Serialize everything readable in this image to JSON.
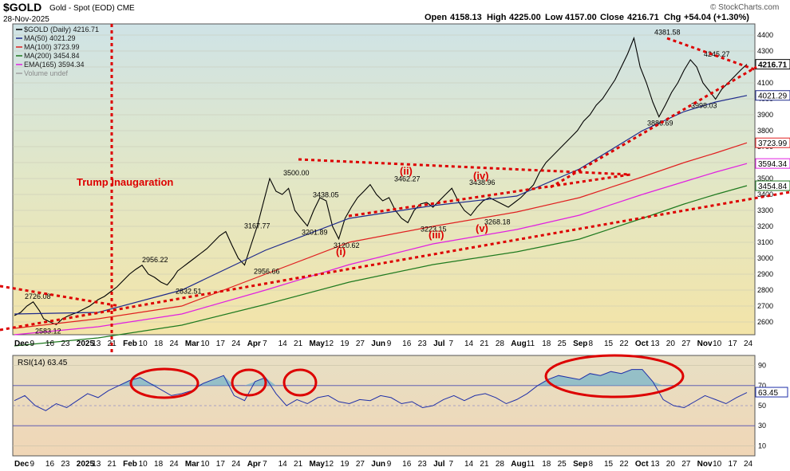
{
  "header": {
    "ticker": "$GOLD",
    "subtitle": "Gold - Spot (EOD)  CME",
    "date": "28-Nov-2025",
    "open_label": "Open",
    "open": "4158.13",
    "high_label": "High",
    "high": "4225.00",
    "low_label": "Low",
    "low": "4157.00",
    "close_label": "Close",
    "close": "4216.71",
    "chg_label": "Chg",
    "chg": "+54.04 (+1.30%)",
    "brand": "© StockCharts.com"
  },
  "legend": [
    {
      "label": "$GOLD (Daily) 4216.71",
      "color": "#000000"
    },
    {
      "label": "MA(50) 4021.29",
      "color": "#1e2a8c"
    },
    {
      "label": "MA(100) 3723.99",
      "color": "#e02020"
    },
    {
      "label": "MA(200) 3454.84",
      "color": "#1f7a1f"
    },
    {
      "label": "EMA(165) 3594.34",
      "color": "#e020e0"
    },
    {
      "label": "Volume undef",
      "color": "#a0a0a0"
    }
  ],
  "colors": {
    "price_up": "#000000",
    "price_down": "#c00000",
    "annotation": "#dd0000",
    "rsi_line": "#1f2fa8",
    "rsi_fill": "#7fb8c8"
  },
  "x_axis_labels": [
    "Dec",
    "9",
    "16",
    "23",
    "2025",
    "13",
    "21",
    "Feb",
    "10",
    "18",
    "24",
    "Mar",
    "10",
    "17",
    "24",
    "Apr",
    "7",
    "14",
    "21",
    "May",
    "12",
    "19",
    "27",
    "Jun",
    "9",
    "16",
    "23",
    "Jul",
    "7",
    "14",
    "21",
    "28",
    "Aug",
    "11",
    "18",
    "25",
    "Sep",
    "8",
    "15",
    "22",
    "Oct",
    "13",
    "20",
    "27",
    "Nov",
    "10",
    "17",
    "24"
  ],
  "chart_data": [
    {
      "type": "line",
      "title": "$GOLD (Daily) 4216.71",
      "y_ticks": [
        "2600",
        "2700",
        "2800",
        "2900",
        "3000",
        "3100",
        "3200",
        "3300",
        "3400",
        "3500",
        "3600",
        "3700",
        "3800",
        "3900",
        "4000",
        "4100",
        "4200",
        "4300",
        "4400"
      ],
      "ylim": [
        2520,
        4470
      ],
      "price_labels": [
        {
          "text": "2726.08",
          "value": 2726.08
        },
        {
          "text": "2583.12",
          "value": 2583.12
        },
        {
          "text": "2956.22",
          "value": 2956.22
        },
        {
          "text": "2832.51",
          "value": 2832.51
        },
        {
          "text": "3167.77",
          "value": 3167.77
        },
        {
          "text": "2956.66",
          "value": 2956.66
        },
        {
          "text": "3500.00",
          "value": 3500.0
        },
        {
          "text": "3438.05",
          "value": 3438.05
        },
        {
          "text": "3201.89",
          "value": 3201.89
        },
        {
          "text": "3120.62",
          "value": 3120.62
        },
        {
          "text": "3462.27",
          "value": 3462.27
        },
        {
          "text": "3223.15",
          "value": 3223.15
        },
        {
          "text": "3438.96",
          "value": 3438.96
        },
        {
          "text": "3268.18",
          "value": 3268.18
        },
        {
          "text": "4381.58",
          "value": 4381.58
        },
        {
          "text": "3886.69",
          "value": 3886.69
        },
        {
          "text": "4245.27",
          "value": 4245.27
        },
        {
          "text": "3998.03",
          "value": 3998.03
        }
      ],
      "right_tags": [
        {
          "text": "4216.71",
          "value": 4216.71,
          "color": "#000000"
        },
        {
          "text": "4021.29",
          "value": 4021.29,
          "color": "#1e2a8c"
        },
        {
          "text": "3723.99",
          "value": 3723.99,
          "color": "#e02020"
        },
        {
          "text": "3594.34",
          "value": 3594.34,
          "color": "#e020e0"
        },
        {
          "text": "3454.84",
          "value": 3454.84,
          "color": "#1f7a1f"
        }
      ],
      "wave_labels": [
        {
          "text": "(i)",
          "value": 3020
        },
        {
          "text": "(ii)",
          "value": 3525
        },
        {
          "text": "(iii)",
          "value": 3125
        },
        {
          "text": "(iv)",
          "value": 3495
        },
        {
          "text": "(v)",
          "value": 3165
        }
      ],
      "annotation": "Trump Inaugaration",
      "series": [
        {
          "name": "$GOLD (Daily) 4216.71",
          "color": "#000000",
          "x": [
            0,
            3,
            6,
            9,
            12,
            14,
            17,
            20,
            23,
            26,
            30,
            33,
            36,
            38,
            40,
            43,
            46,
            49,
            52,
            55,
            58,
            61,
            64,
            67,
            70,
            73,
            76,
            78,
            80,
            83,
            86,
            89,
            92,
            95,
            98,
            101,
            104,
            107,
            110,
            113,
            116,
            119,
            122,
            125,
            128,
            131,
            134,
            137,
            140,
            143,
            146,
            149,
            152,
            155,
            158,
            161,
            164,
            167,
            170,
            173,
            176,
            179,
            182,
            185,
            188,
            191,
            194,
            197,
            200,
            203,
            206,
            209,
            212,
            215,
            218,
            221,
            224,
            227,
            230,
            233,
            236,
            239,
            242,
            245,
            248,
            251,
            254,
            257,
            260,
            263,
            266,
            269,
            272,
            275,
            278,
            281,
            284,
            287,
            290,
            293,
            296,
            299,
            302,
            305,
            308,
            311,
            314,
            317,
            320,
            323,
            326,
            329,
            332,
            335,
            338,
            341,
            344,
            347,
            350
          ],
          "values": [
            2640,
            2660,
            2700,
            2726,
            2670,
            2620,
            2600,
            2583,
            2620,
            2640,
            2660,
            2680,
            2700,
            2720,
            2740,
            2760,
            2790,
            2820,
            2860,
            2900,
            2930,
            2956,
            2900,
            2880,
            2850,
            2832,
            2880,
            2920,
            2940,
            2970,
            3000,
            3030,
            3060,
            3100,
            3140,
            3167,
            3080,
            3000,
            2957,
            3080,
            3200,
            3350,
            3500,
            3420,
            3400,
            3438,
            3300,
            3250,
            3202,
            3300,
            3380,
            3360,
            3200,
            3121,
            3250,
            3320,
            3380,
            3420,
            3462,
            3400,
            3360,
            3380,
            3300,
            3250,
            3223,
            3300,
            3340,
            3350,
            3320,
            3360,
            3400,
            3439,
            3360,
            3300,
            3268,
            3320,
            3360,
            3380,
            3360,
            3340,
            3320,
            3350,
            3380,
            3420,
            3460,
            3540,
            3600,
            3640,
            3680,
            3720,
            3760,
            3800,
            3860,
            3900,
            3960,
            4000,
            4060,
            4120,
            4200,
            4282,
            4381,
            4200,
            4100,
            3980,
            3887,
            3960,
            4040,
            4100,
            4180,
            4245,
            4200,
            4100,
            4050,
            3998,
            4060,
            4100,
            4140,
            4180,
            4217
          ]
        },
        {
          "name": "MA(50) 4021.29",
          "color": "#1e2a8c",
          "x": [
            0,
            40,
            80,
            120,
            160,
            200,
            240,
            270,
            300,
            320,
            335,
            350
          ],
          "values": [
            2650,
            2660,
            2800,
            3050,
            3250,
            3330,
            3390,
            3560,
            3800,
            3920,
            3980,
            4021
          ]
        },
        {
          "name": "MA(100) 3723.99",
          "color": "#e02020",
          "x": [
            0,
            40,
            80,
            120,
            160,
            200,
            240,
            270,
            300,
            320,
            335,
            350
          ],
          "values": [
            2560,
            2620,
            2700,
            2900,
            3100,
            3200,
            3290,
            3380,
            3510,
            3600,
            3660,
            3724
          ]
        },
        {
          "name": "EMA(165) 3594.34",
          "color": "#e020e0",
          "x": [
            0,
            40,
            80,
            120,
            160,
            200,
            240,
            270,
            300,
            320,
            335,
            350
          ],
          "values": [
            2520,
            2570,
            2650,
            2800,
            2960,
            3090,
            3180,
            3270,
            3400,
            3480,
            3540,
            3594
          ]
        },
        {
          "name": "MA(200) 3454.84",
          "color": "#1f7a1f",
          "x": [
            0,
            40,
            80,
            120,
            160,
            200,
            240,
            270,
            300,
            320,
            335,
            350
          ],
          "values": [
            2450,
            2500,
            2580,
            2710,
            2850,
            2960,
            3040,
            3120,
            3250,
            3340,
            3400,
            3455
          ]
        }
      ]
    },
    {
      "type": "line",
      "title": "RSI(14) 63.45",
      "y_ticks": [
        "10",
        "30",
        "50",
        "70",
        "90"
      ],
      "ylim": [
        0,
        100
      ],
      "right_tags": [
        {
          "text": "63.45",
          "value": 63.45,
          "color": "#1f2fa8"
        }
      ],
      "series": [
        {
          "name": "RSI(14) 63.45",
          "color": "#1f2fa8",
          "x": [
            0,
            5,
            10,
            15,
            20,
            25,
            30,
            35,
            40,
            45,
            50,
            55,
            60,
            65,
            70,
            75,
            80,
            85,
            90,
            95,
            100,
            105,
            110,
            115,
            120,
            125,
            130,
            135,
            140,
            145,
            150,
            155,
            160,
            165,
            170,
            175,
            180,
            185,
            190,
            195,
            200,
            205,
            210,
            215,
            220,
            225,
            230,
            235,
            240,
            245,
            250,
            255,
            260,
            265,
            270,
            275,
            280,
            285,
            290,
            295,
            300,
            305,
            310,
            315,
            320,
            325,
            330,
            335,
            340,
            345,
            350
          ],
          "values": [
            55,
            60,
            50,
            45,
            52,
            48,
            55,
            62,
            58,
            65,
            70,
            75,
            78,
            72,
            66,
            60,
            62,
            65,
            72,
            76,
            80,
            60,
            55,
            74,
            78,
            62,
            50,
            56,
            52,
            58,
            60,
            54,
            52,
            56,
            55,
            60,
            58,
            52,
            54,
            48,
            50,
            56,
            60,
            55,
            60,
            62,
            58,
            52,
            56,
            62,
            70,
            76,
            80,
            78,
            76,
            82,
            80,
            84,
            82,
            86,
            86,
            74,
            56,
            50,
            48,
            54,
            60,
            56,
            52,
            58,
            63
          ]
        }
      ]
    }
  ]
}
